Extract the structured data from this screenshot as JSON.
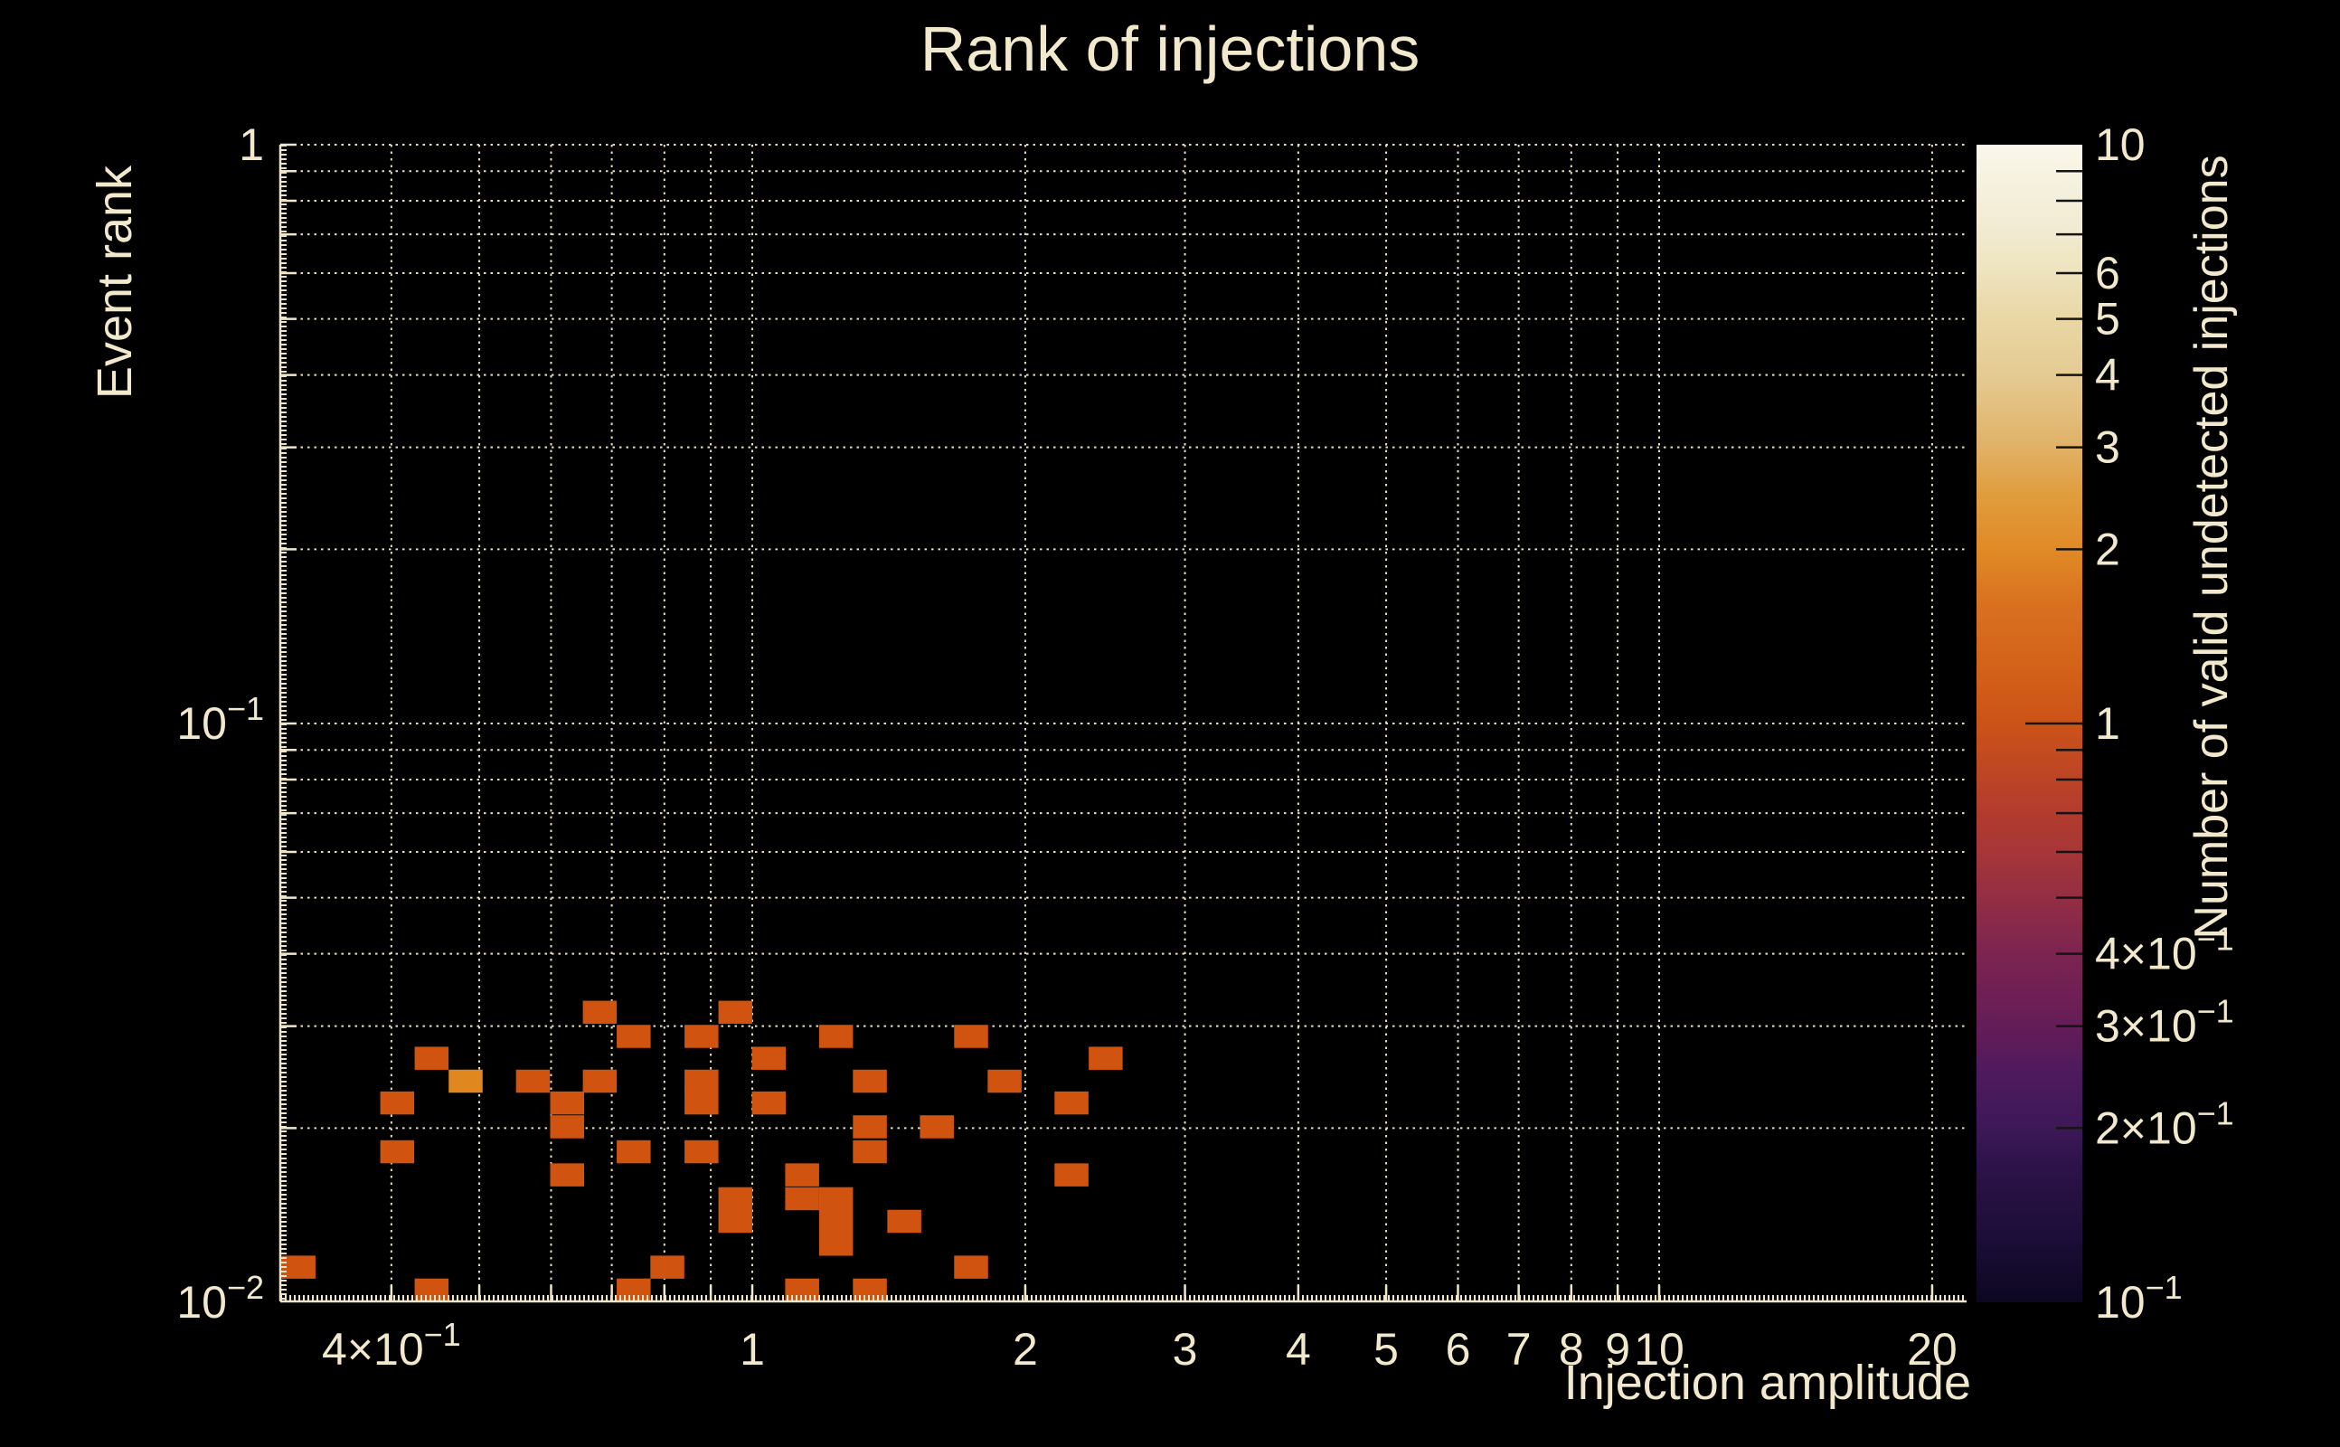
{
  "chart_data": {
    "type": "heatmap",
    "title": "Rank of injections",
    "x_axis": {
      "label": "Injection amplitude",
      "scale": "log",
      "range": [
        0.302,
        21.8
      ],
      "tick_values": [
        0.4,
        1,
        2,
        3,
        4,
        5,
        6,
        7,
        8,
        9,
        10,
        20
      ],
      "tick_labels": [
        "4×10^−1",
        "1",
        "2",
        "3",
        "4",
        "5",
        "6",
        "7",
        "8",
        "9",
        "10",
        "20"
      ],
      "grid_values": [
        0.4,
        0.5,
        0.6,
        0.7,
        0.8,
        0.9,
        1,
        2,
        3,
        4,
        5,
        6,
        7,
        8,
        9,
        10,
        20
      ]
    },
    "y_axis": {
      "label": "Event rank",
      "scale": "log",
      "range": [
        0.01,
        1
      ],
      "tick_values": [
        1,
        0.1,
        0.01
      ],
      "tick_labels": [
        "1",
        "10^−1",
        "10^−2"
      ],
      "grid_values": [
        1,
        0.9,
        0.8,
        0.7,
        0.6,
        0.5,
        0.4,
        0.3,
        0.2,
        0.1,
        0.09,
        0.08,
        0.07,
        0.06,
        0.05,
        0.04,
        0.03,
        0.02
      ]
    },
    "colorbar": {
      "label": "Number of valid undetected injections",
      "scale": "log",
      "range": [
        0.1,
        10
      ],
      "tick_values": [
        10,
        6,
        5,
        4,
        3,
        2,
        1,
        0.4,
        0.3,
        0.2,
        0.1
      ],
      "tick_labels": [
        "10",
        "6",
        "5",
        "4",
        "3",
        "2",
        "1",
        "4×10^−1",
        "3×10^−1",
        "2×10^−1",
        "10^−1"
      ],
      "minor_tick_values": [
        9,
        8,
        7,
        6,
        5,
        4,
        3,
        2,
        0.9,
        0.8,
        0.7,
        0.6,
        0.5,
        0.4,
        0.3,
        0.2
      ],
      "major_tick_values": [
        1
      ],
      "gradient": [
        {
          "v": 0.1,
          "c": "#0d0721"
        },
        {
          "v": 0.13,
          "c": "#1c0e38"
        },
        {
          "v": 0.17,
          "c": "#2c1248"
        },
        {
          "v": 0.2,
          "c": "#3d1858"
        },
        {
          "v": 0.25,
          "c": "#4e1a5e"
        },
        {
          "v": 0.3,
          "c": "#641d57"
        },
        {
          "v": 0.4,
          "c": "#7c2450"
        },
        {
          "v": 0.5,
          "c": "#932e44"
        },
        {
          "v": 0.6,
          "c": "#a63637"
        },
        {
          "v": 0.7,
          "c": "#b23b2e"
        },
        {
          "v": 0.8,
          "c": "#bc4427"
        },
        {
          "v": 1,
          "c": "#cc5317"
        },
        {
          "v": 1.3,
          "c": "#d4641a"
        },
        {
          "v": 1.6,
          "c": "#d97020"
        },
        {
          "v": 2,
          "c": "#e08a26"
        },
        {
          "v": 2.5,
          "c": "#e09e3e"
        },
        {
          "v": 3,
          "c": "#e0b167"
        },
        {
          "v": 4,
          "c": "#e5cb92"
        },
        {
          "v": 5,
          "c": "#e9d7a4"
        },
        {
          "v": 6,
          "c": "#eee3bd"
        },
        {
          "v": 7,
          "c": "#f1ead0"
        },
        {
          "v": 8,
          "c": "#f4efdb"
        },
        {
          "v": 9,
          "c": "#f7f3e2"
        },
        {
          "v": 10,
          "c": "#faf8ec"
        }
      ]
    },
    "cells_format": [
      "injection_amplitude",
      "event_rank",
      "count"
    ],
    "cells": [
      [
        0.679,
        0.0317,
        1
      ],
      [
        0.958,
        0.0317,
        1
      ],
      [
        0.74,
        0.0288,
        1
      ],
      [
        0.879,
        0.0288,
        1
      ],
      [
        1.237,
        0.0288,
        1
      ],
      [
        1.743,
        0.0288,
        1
      ],
      [
        0.443,
        0.0264,
        1
      ],
      [
        1.043,
        0.0264,
        1
      ],
      [
        2.453,
        0.0264,
        1
      ],
      [
        0.483,
        0.0241,
        2
      ],
      [
        0.573,
        0.0241,
        1
      ],
      [
        0.679,
        0.0241,
        1
      ],
      [
        0.879,
        0.0241,
        1
      ],
      [
        1.348,
        0.0241,
        1
      ],
      [
        1.898,
        0.0241,
        1
      ],
      [
        0.406,
        0.0221,
        1
      ],
      [
        0.625,
        0.0221,
        1
      ],
      [
        0.879,
        0.0221,
        1
      ],
      [
        1.043,
        0.0221,
        1
      ],
      [
        2.249,
        0.0221,
        1
      ],
      [
        0.625,
        0.0201,
        1
      ],
      [
        1.348,
        0.0201,
        1
      ],
      [
        1.598,
        0.0201,
        1
      ],
      [
        0.406,
        0.0182,
        1
      ],
      [
        0.74,
        0.0182,
        1
      ],
      [
        0.879,
        0.0182,
        1
      ],
      [
        1.348,
        0.0182,
        1
      ],
      [
        0.625,
        0.0166,
        1
      ],
      [
        1.135,
        0.0166,
        1
      ],
      [
        2.249,
        0.0166,
        1
      ],
      [
        0.958,
        0.0151,
        1
      ],
      [
        1.135,
        0.0151,
        1
      ],
      [
        1.237,
        0.0151,
        1
      ],
      [
        0.958,
        0.0138,
        1
      ],
      [
        1.237,
        0.0138,
        1
      ],
      [
        1.471,
        0.0138,
        1
      ],
      [
        1.237,
        0.0126,
        1
      ],
      [
        0.316,
        0.0115,
        1
      ],
      [
        0.806,
        0.0115,
        1
      ],
      [
        1.743,
        0.0115,
        1
      ],
      [
        0.443,
        0.0105,
        1
      ],
      [
        0.74,
        0.0105,
        1
      ],
      [
        1.135,
        0.0105,
        1
      ],
      [
        1.348,
        0.0105,
        1
      ]
    ],
    "colors": {
      "background": "#000000",
      "text": "#f2e9cc",
      "grid": "#e8dfc2",
      "axis": "#efe6ca",
      "cell_count_1": "#d15310",
      "cell_count_2": "#e1871f",
      "colorbar_tick": "#141414"
    },
    "layout_hints": {
      "grid": "dotted, all log subdivisions",
      "legend_position": "right colorbar"
    }
  }
}
